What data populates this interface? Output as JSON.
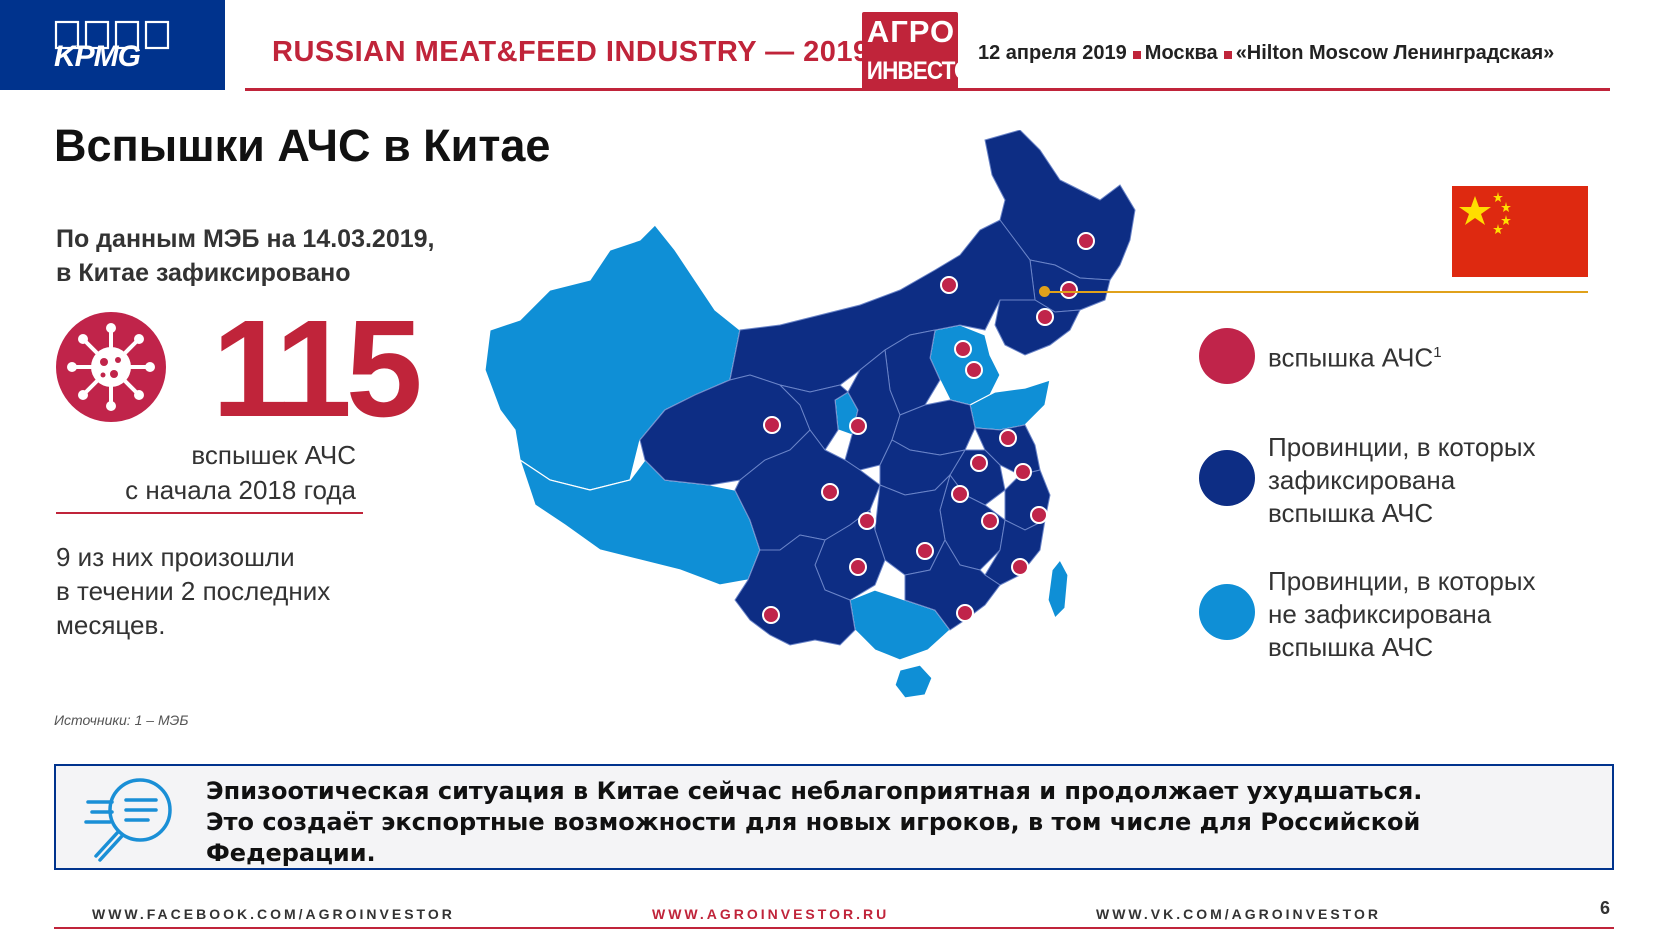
{
  "header": {
    "logo_text": "KPMG",
    "event_title": "RUSSIAN MEAT&FEED INDUSTRY — 2019",
    "partner_line1": "АГРО",
    "partner_line2": "ИНВЕСТОР",
    "date": "12 апреля 2019",
    "city": "Москва",
    "venue": "«Hilton Moscow Ленинградская»"
  },
  "title": "Вспышки АЧС в Китае",
  "intro_line1": "По данным МЭБ на 14.03.2019,",
  "intro_line2": "в Китае зафиксировано",
  "big_number": "115",
  "caption_line1": "вспышек АЧС",
  "caption_line2": "с начала 2018 года",
  "recent_line1": "9 из них произошли",
  "recent_line2": "в течении 2 последних",
  "recent_line3": "месяцев.",
  "source": "Источники: 1 – МЭБ",
  "colors": {
    "outbreak": "#c0244a",
    "affected": "#0d2d84",
    "unaffected": "#0f8fd6",
    "accent": "#c0243a",
    "brand": "#00338d"
  },
  "legend": {
    "outbreak_label": "вспышка АЧС",
    "outbreak_sup": "1",
    "affected_line1": "Провинции, в которых",
    "affected_line2": "зафиксирована",
    "affected_line3": "вспышка АЧС",
    "unaffected_line1": "Провинции, в которых",
    "unaffected_line2": "не зафиксирована",
    "unaffected_line3": "вспышка АЧС"
  },
  "callout": {
    "line1": "Эпизоотическая ситуация в Китае сейчас неблагоприятная и продолжает ухудшаться.",
    "line2": "Это создаёт экспортные возможности для новых игроков, в том числе для Российской",
    "line3": "Федерации.",
    "icon": "magnifier-document-icon"
  },
  "footer": {
    "facebook": "WWW.FACEBOOK.COM/AGROINVESTOR",
    "site": "WWW.AGROINVESTOR.RU",
    "vk": "WWW.VK.COM/AGROINVESTOR",
    "page": "6"
  }
}
